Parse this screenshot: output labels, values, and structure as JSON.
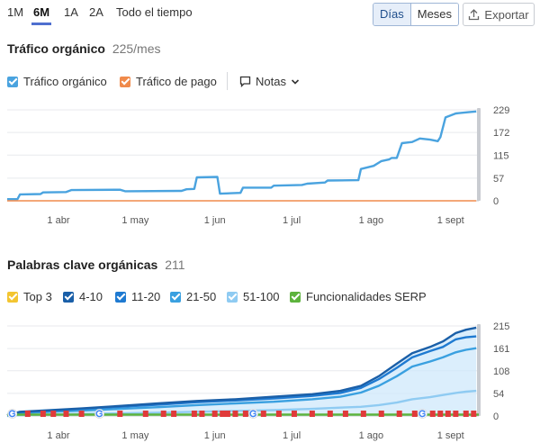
{
  "ranges": [
    "1M",
    "6M",
    "1A",
    "2A",
    "Todo el tiempo"
  ],
  "active_range": "6M",
  "granularity": {
    "days": "Días",
    "months": "Meses",
    "active": "Días"
  },
  "export_label": "Exportar",
  "traffic": {
    "title": "Tráfico orgánico",
    "subtitle": "225/mes",
    "legend": [
      {
        "label": "Tráfico orgánico",
        "color": "#4aa3df",
        "checked": true
      },
      {
        "label": "Tráfico de pago",
        "color": "#f08a4b",
        "checked": true
      }
    ],
    "notes_label": "Notas"
  },
  "keywords": {
    "title": "Palabras clave orgánicas",
    "subtitle": "211",
    "legend": [
      {
        "label": "Top 3",
        "color": "#f3c531"
      },
      {
        "label": "4-10",
        "color": "#1a5fa8"
      },
      {
        "label": "11-20",
        "color": "#1f7ad1"
      },
      {
        "label": "21-50",
        "color": "#3aa0e0"
      },
      {
        "label": "51-100",
        "color": "#8fcbf2"
      },
      {
        "label": "Funcionalidades SERP",
        "color": "#5db33d"
      }
    ]
  },
  "chart_data": [
    {
      "type": "line",
      "x_ticks": [
        "1 abr",
        "1 may",
        "1 jun",
        "1 jul",
        "1 ago",
        "1 sept"
      ],
      "y_ticks": [
        0,
        57,
        115,
        172,
        229
      ],
      "ylim": [
        0,
        229
      ],
      "x_domain": [
        "2024-03-12",
        "2024-09-12"
      ],
      "series": [
        {
          "name": "Tráfico orgánico",
          "color": "#4aa3df",
          "points": [
            [
              "2024-03-12",
              4
            ],
            [
              "2024-03-16",
              4
            ],
            [
              "2024-03-17",
              16
            ],
            [
              "2024-03-25",
              17
            ],
            [
              "2024-03-26",
              21
            ],
            [
              "2024-04-04",
              22
            ],
            [
              "2024-04-06",
              27
            ],
            [
              "2024-04-25",
              28
            ],
            [
              "2024-04-27",
              24
            ],
            [
              "2024-05-19",
              25
            ],
            [
              "2024-05-21",
              29
            ],
            [
              "2024-05-24",
              30
            ],
            [
              "2024-05-25",
              59
            ],
            [
              "2024-06-02",
              60
            ],
            [
              "2024-06-03",
              18
            ],
            [
              "2024-06-11",
              20
            ],
            [
              "2024-06-12",
              33
            ],
            [
              "2024-06-23",
              33
            ],
            [
              "2024-06-24",
              38
            ],
            [
              "2024-07-05",
              40
            ],
            [
              "2024-07-07",
              43
            ],
            [
              "2024-07-14",
              46
            ],
            [
              "2024-07-15",
              51
            ],
            [
              "2024-07-27",
              52
            ],
            [
              "2024-07-28",
              80
            ],
            [
              "2024-08-02",
              88
            ],
            [
              "2024-08-05",
              100
            ],
            [
              "2024-08-08",
              104
            ],
            [
              "2024-08-09",
              108
            ],
            [
              "2024-08-11",
              108
            ],
            [
              "2024-08-13",
              145
            ],
            [
              "2024-08-17",
              148
            ],
            [
              "2024-08-20",
              157
            ],
            [
              "2024-08-24",
              154
            ],
            [
              "2024-08-27",
              150
            ],
            [
              "2024-08-28",
              160
            ],
            [
              "2024-08-30",
              210
            ],
            [
              "2024-09-03",
              220
            ],
            [
              "2024-09-08",
              223
            ],
            [
              "2024-09-11",
              225
            ]
          ]
        },
        {
          "name": "Tráfico de pago",
          "color": "#f08a4b",
          "points": [
            [
              "2024-03-12",
              0
            ],
            [
              "2024-09-11",
              0
            ]
          ]
        }
      ]
    },
    {
      "type": "area",
      "x_ticks": [
        "1 abr",
        "1 may",
        "1 jun",
        "1 jul",
        "1 ago",
        "1 sept"
      ],
      "y_ticks": [
        0,
        54,
        108,
        161,
        215
      ],
      "ylim": [
        0,
        215
      ],
      "x_domain": [
        "2024-03-12",
        "2024-09-12"
      ],
      "x_dates": [
        "2024-03-12",
        "2024-03-17",
        "2024-03-26",
        "2024-04-10",
        "2024-04-25",
        "2024-05-10",
        "2024-05-25",
        "2024-06-09",
        "2024-06-24",
        "2024-07-09",
        "2024-07-20",
        "2024-07-28",
        "2024-08-04",
        "2024-08-11",
        "2024-08-17",
        "2024-08-24",
        "2024-08-29",
        "2024-09-03",
        "2024-09-07",
        "2024-09-11"
      ],
      "series": [
        {
          "name": "4-10",
          "color": "#1a5fa8",
          "values": [
            2,
            10,
            13,
            18,
            24,
            30,
            36,
            40,
            46,
            52,
            60,
            72,
            95,
            125,
            150,
            165,
            178,
            198,
            206,
            211
          ]
        },
        {
          "name": "11-20",
          "color": "#1f7ad1",
          "values": [
            2,
            9,
            12,
            17,
            22,
            27,
            33,
            37,
            42,
            48,
            55,
            67,
            88,
            115,
            140,
            155,
            165,
            183,
            188,
            190
          ]
        },
        {
          "name": "21-50",
          "color": "#3aa0e0",
          "values": [
            1,
            7,
            9,
            13,
            17,
            21,
            26,
            30,
            34,
            40,
            46,
            56,
            72,
            95,
            118,
            130,
            140,
            152,
            158,
            162
          ]
        },
        {
          "name": "51-100",
          "color": "#8fcbf2",
          "values": [
            0,
            2,
            3,
            5,
            6,
            8,
            10,
            12,
            14,
            17,
            20,
            22,
            26,
            32,
            40,
            45,
            50,
            55,
            58,
            60
          ]
        },
        {
          "name": "Top 3",
          "color": "#f3c531",
          "values": [
            0,
            0,
            0,
            0,
            0,
            0,
            0,
            0,
            0,
            0,
            0,
            0,
            0,
            0,
            0,
            0,
            0,
            0,
            0,
            0
          ]
        },
        {
          "name": "Funcionalidades SERP",
          "color": "#5db33d",
          "values": [
            1,
            1,
            1,
            1,
            1,
            1,
            1,
            1,
            1,
            1,
            1,
            1,
            1,
            1,
            1,
            1,
            1,
            1,
            1,
            1
          ]
        }
      ],
      "google_markers": [
        "2024-03-14",
        "2024-04-17",
        "2024-06-16",
        "2024-08-21"
      ],
      "flag_markers": [
        "2024-03-20",
        "2024-03-26",
        "2024-03-30",
        "2024-04-04",
        "2024-04-10",
        "2024-04-25",
        "2024-05-05",
        "2024-05-12",
        "2024-05-16",
        "2024-05-24",
        "2024-05-27",
        "2024-06-01",
        "2024-06-04",
        "2024-06-06",
        "2024-06-09",
        "2024-06-13",
        "2024-06-20",
        "2024-06-26",
        "2024-07-02",
        "2024-07-09",
        "2024-07-16",
        "2024-07-22",
        "2024-07-29",
        "2024-08-05",
        "2024-08-12",
        "2024-08-18",
        "2024-08-25",
        "2024-08-28",
        "2024-08-31",
        "2024-09-03",
        "2024-09-07",
        "2024-09-10"
      ]
    }
  ]
}
